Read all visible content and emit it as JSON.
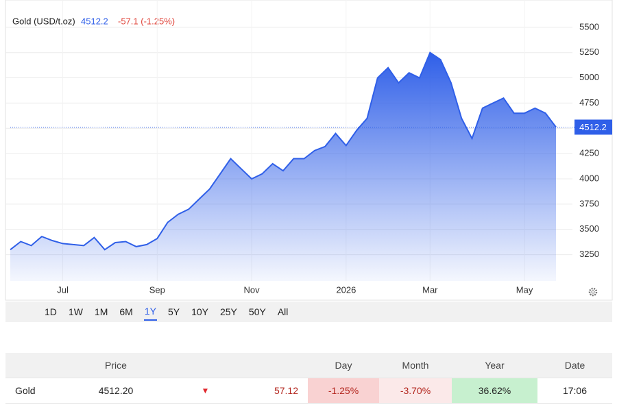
{
  "chart_data": {
    "type": "area",
    "title": "Gold (USD/t.oz)",
    "price": 4512.2,
    "change": "-57.1 (-1.25%)",
    "categories": [
      null,
      null,
      null,
      null,
      null,
      "Jul",
      null,
      null,
      null,
      null,
      null,
      null,
      null,
      null,
      "Sep",
      null,
      null,
      null,
      null,
      null,
      null,
      null,
      null,
      "Nov",
      null,
      null,
      null,
      null,
      null,
      null,
      null,
      null,
      "2026",
      null,
      null,
      null,
      null,
      null,
      null,
      null,
      "Mar",
      null,
      null,
      null,
      null,
      null,
      null,
      null,
      null,
      "May",
      null,
      null,
      null
    ],
    "values": [
      3300,
      3380,
      3340,
      3430,
      3390,
      3360,
      3350,
      3340,
      3420,
      3300,
      3370,
      3380,
      3330,
      3350,
      3410,
      3570,
      3650,
      3700,
      3800,
      3900,
      4050,
      4200,
      4100,
      4000,
      4050,
      4150,
      4080,
      4200,
      4200,
      4280,
      4320,
      4450,
      4330,
      4480,
      4600,
      5000,
      5100,
      4950,
      5050,
      5000,
      5250,
      5180,
      4950,
      4600,
      4400,
      4700,
      4750,
      4800,
      4650,
      4650,
      4700,
      4650,
      4512.2
    ],
    "color": "#2f5fe8",
    "ylim": [
      2990,
      5770
    ],
    "yticks": [
      3250,
      3500,
      3750,
      4000,
      4250,
      4500,
      4750,
      5000,
      5250,
      5500
    ],
    "grid": true
  },
  "ranges": [
    "1D",
    "1W",
    "1M",
    "6M",
    "1Y",
    "5Y",
    "10Y",
    "25Y",
    "50Y",
    "All"
  ],
  "active_range": "1Y",
  "table": {
    "headers": [
      "Price",
      "Day",
      "Month",
      "Year",
      "Date"
    ],
    "rows": [
      [
        "Gold",
        "4512.20",
        "57.12",
        "-1.25%",
        "-3.70%",
        "36.62%",
        "17:06"
      ]
    ]
  }
}
